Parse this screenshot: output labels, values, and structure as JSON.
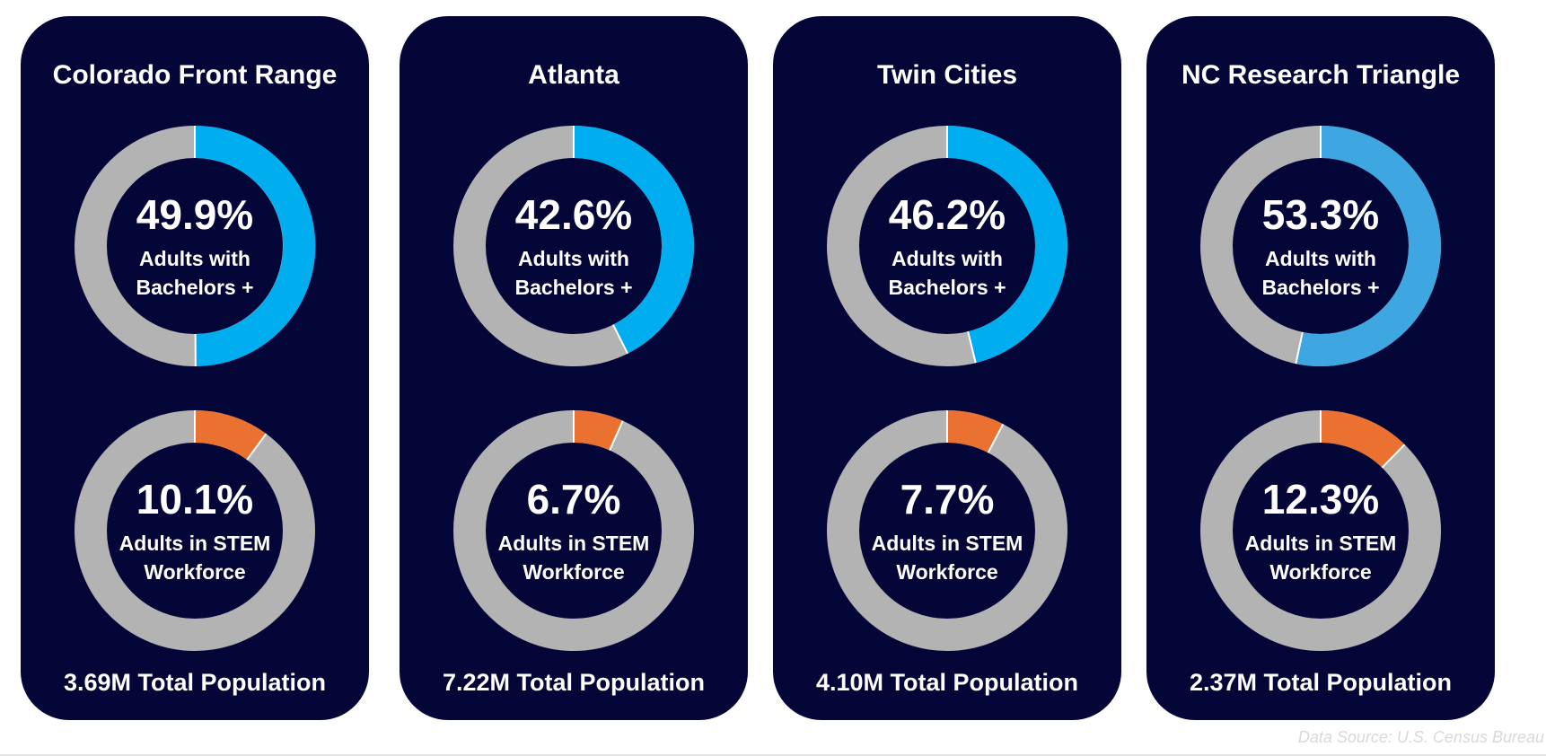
{
  "chart_data": [
    {
      "type": "pie",
      "title": "Colorado Front Range",
      "series": [
        {
          "name": "Adults with Bachelors +",
          "value": 49.9,
          "label": "49.9%",
          "line1": "Adults with",
          "line2": "Bachelors +",
          "color": "#00aeef"
        },
        {
          "name": "Adults in STEM Workforce",
          "value": 10.1,
          "label": "10.1%",
          "line1": "Adults in STEM",
          "line2": "Workforce",
          "color": "#ea7130"
        }
      ],
      "population": "3.69M Total Population"
    },
    {
      "type": "pie",
      "title": "Atlanta",
      "series": [
        {
          "name": "Adults with Bachelors +",
          "value": 42.6,
          "label": "42.6%",
          "line1": "Adults with",
          "line2": "Bachelors +",
          "color": "#00aeef"
        },
        {
          "name": "Adults in STEM Workforce",
          "value": 6.7,
          "label": "6.7%",
          "line1": "Adults in STEM",
          "line2": "Workforce",
          "color": "#ea7130"
        }
      ],
      "population": "7.22M Total Population"
    },
    {
      "type": "pie",
      "title": "Twin Cities",
      "series": [
        {
          "name": "Adults with Bachelors +",
          "value": 46.2,
          "label": "46.2%",
          "line1": "Adults with",
          "line2": "Bachelors +",
          "color": "#00aeef"
        },
        {
          "name": "Adults in STEM Workforce",
          "value": 7.7,
          "label": "7.7%",
          "line1": "Adults in STEM",
          "line2": "Workforce",
          "color": "#ea7130"
        }
      ],
      "population": "4.10M Total Population"
    },
    {
      "type": "pie",
      "title": "NC Research Triangle",
      "series": [
        {
          "name": "Adults with Bachelors +",
          "value": 53.3,
          "label": "53.3%",
          "line1": "Adults with",
          "line2": "Bachelors +",
          "color": "#3ea6e0"
        },
        {
          "name": "Adults in STEM Workforce",
          "value": 12.3,
          "label": "12.3%",
          "line1": "Adults in STEM",
          "line2": "Workforce",
          "color": "#ea7130"
        }
      ],
      "population": "2.37M Total Population"
    }
  ],
  "colors": {
    "card": "#050638",
    "track": "#b3b3b3",
    "text": "#ffffff"
  },
  "footer": {
    "source": "Data Source: U.S. Census Bureau"
  }
}
